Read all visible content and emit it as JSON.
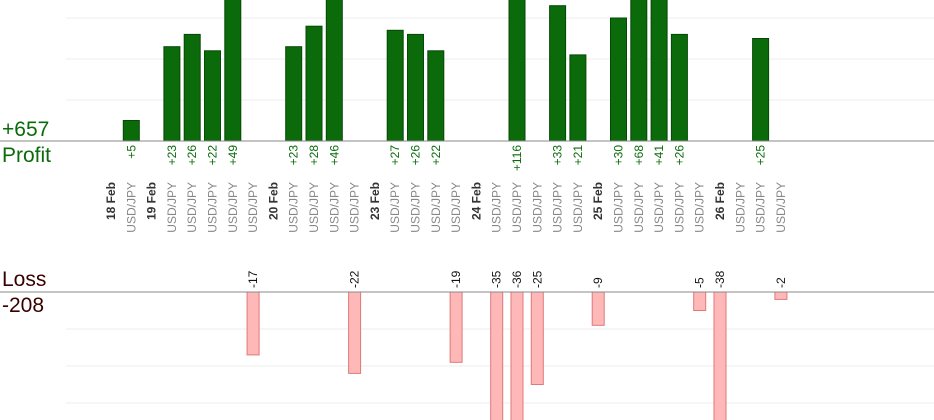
{
  "summary": {
    "profit_total": "+657",
    "profit_word": "Profit",
    "loss_word": "Loss",
    "loss_total": "-208"
  },
  "colors": {
    "profit_bar": "#0b6b0b",
    "profit_bar_edge": "#064806",
    "profit_text": "#0b6b0b",
    "loss_bar": "#ffb8b8",
    "loss_bar_edge": "#e07878",
    "loss_text": "#111111",
    "axis": "#888888",
    "grid": "#ececec",
    "pair_text": "#888888",
    "date_text": "#333333"
  },
  "chart_data": {
    "type": "bar",
    "subtype": "trade profit/loss by trade",
    "categories": [
      "18 Feb",
      "USD/JPY",
      "19 Feb",
      "USD/JPY",
      "USD/JPY",
      "USD/JPY",
      "USD/JPY",
      "USD/JPY",
      "20 Feb",
      "USD/JPY",
      "USD/JPY",
      "USD/JPY",
      "USD/JPY",
      "23 Feb",
      "USD/JPY",
      "USD/JPY",
      "USD/JPY",
      "USD/JPY",
      "24 Feb",
      "USD/JPY",
      "USD/JPY",
      "USD/JPY",
      "USD/JPY",
      "USD/JPY",
      "25 Feb",
      "USD/JPY",
      "USD/JPY",
      "USD/JPY",
      "USD/JPY",
      "USD/JPY",
      "26 Feb",
      "USD/JPY",
      "USD/JPY",
      "USD/JPY"
    ],
    "is_date_header": [
      true,
      false,
      true,
      false,
      false,
      false,
      false,
      false,
      true,
      false,
      false,
      false,
      false,
      true,
      false,
      false,
      false,
      false,
      true,
      false,
      false,
      false,
      false,
      false,
      true,
      false,
      false,
      false,
      false,
      false,
      true,
      false,
      false,
      false
    ],
    "profit_values": [
      null,
      5,
      null,
      23,
      26,
      22,
      49,
      null,
      null,
      23,
      28,
      46,
      null,
      null,
      27,
      26,
      22,
      null,
      null,
      null,
      116,
      null,
      33,
      21,
      null,
      30,
      68,
      41,
      26,
      null,
      null,
      null,
      25,
      null
    ],
    "profit_labels": [
      "",
      "+5",
      "",
      "+23",
      "+26",
      "+22",
      "+49",
      "",
      "",
      "+23",
      "+28",
      "+46",
      "",
      "",
      "+27",
      "+26",
      "+22",
      "",
      "",
      "",
      "+116",
      "",
      "+33",
      "+21",
      "",
      "+30",
      "+68",
      "+41",
      "+26",
      "",
      "",
      "",
      "+25",
      ""
    ],
    "loss_values": [
      null,
      null,
      null,
      null,
      null,
      null,
      null,
      17,
      null,
      null,
      null,
      null,
      22,
      null,
      null,
      null,
      null,
      19,
      null,
      35,
      null,
      36,
      25,
      null,
      null,
      9,
      null,
      null,
      null,
      5,
      null,
      38,
      null,
      2
    ],
    "loss_labels": [
      "",
      "",
      "",
      "",
      "",
      "",
      "",
      "-17",
      "",
      "",
      "",
      "",
      "-22",
      "",
      "",
      "",
      "",
      "-19",
      "",
      "-35",
      "",
      "-36",
      "-25",
      "",
      "",
      "-9",
      "",
      "",
      "",
      "-5",
      "",
      "-38",
      "",
      "-2"
    ],
    "loss_x_offset_slots": [
      0,
      0,
      0,
      0,
      0,
      0,
      0,
      0,
      0,
      0,
      0,
      0,
      0,
      0,
      0,
      0,
      0,
      0,
      0,
      0,
      0,
      -1,
      -1,
      0,
      0,
      -1,
      0,
      0,
      0,
      0,
      0,
      -1,
      0,
      0
    ],
    "profit_ylim": [
      0,
      30
    ],
    "loss_ylim": [
      0,
      30
    ],
    "profit_gridlines": [
      10,
      20,
      30
    ],
    "loss_gridlines": [
      10,
      20,
      30
    ],
    "grid": true,
    "legend": "none"
  }
}
